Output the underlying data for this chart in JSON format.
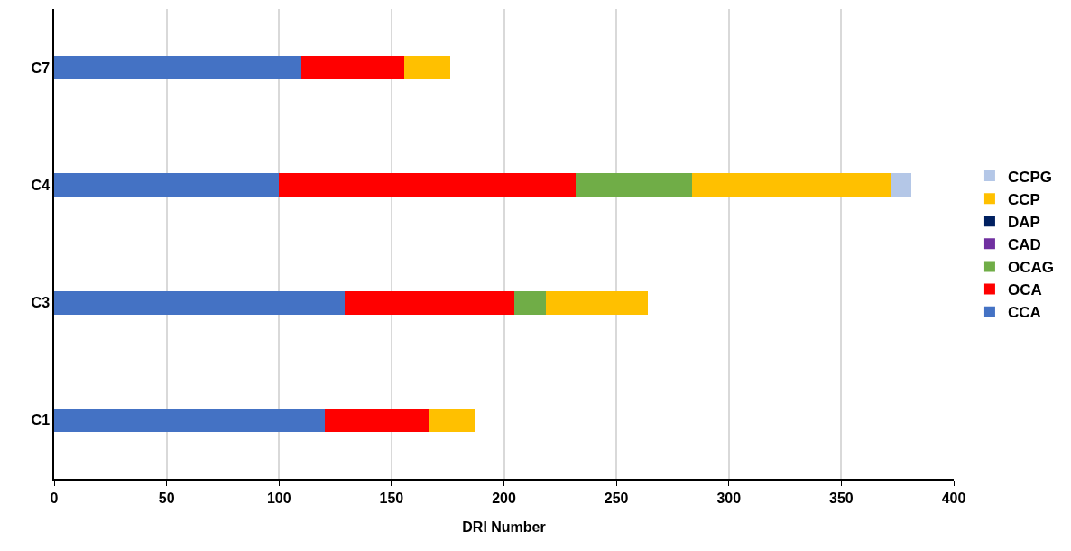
{
  "chart_data": {
    "type": "bar",
    "orientation": "horizontal",
    "stacked": true,
    "xlabel": "DRI Number",
    "categories": [
      "C7",
      "C4",
      "C3",
      "C1"
    ],
    "series": [
      {
        "name": "CCA",
        "color": "#4472c4",
        "values": [
          110,
          100,
          129,
          120.5
        ]
      },
      {
        "name": "OCA",
        "color": "#ff0000",
        "values": [
          45.5,
          132,
          75.5,
          46
        ]
      },
      {
        "name": "OCAG",
        "color": "#70ad47",
        "values": [
          0,
          51.5,
          14,
          0
        ]
      },
      {
        "name": "CAD",
        "color": "#7030a0",
        "values": [
          0,
          0,
          0,
          0
        ]
      },
      {
        "name": "DAP",
        "color": "#002060",
        "values": [
          0,
          0,
          0,
          0
        ]
      },
      {
        "name": "CCP",
        "color": "#ffc000",
        "values": [
          20.5,
          88.5,
          45.5,
          20.5
        ]
      },
      {
        "name": "CCPG",
        "color": "#b4c7e7",
        "values": [
          0,
          9,
          0,
          0
        ]
      }
    ],
    "xlim": [
      0,
      400
    ],
    "xticks": [
      0,
      50,
      100,
      150,
      200,
      250,
      300,
      350,
      400
    ],
    "grid": "x",
    "legend": "right"
  }
}
